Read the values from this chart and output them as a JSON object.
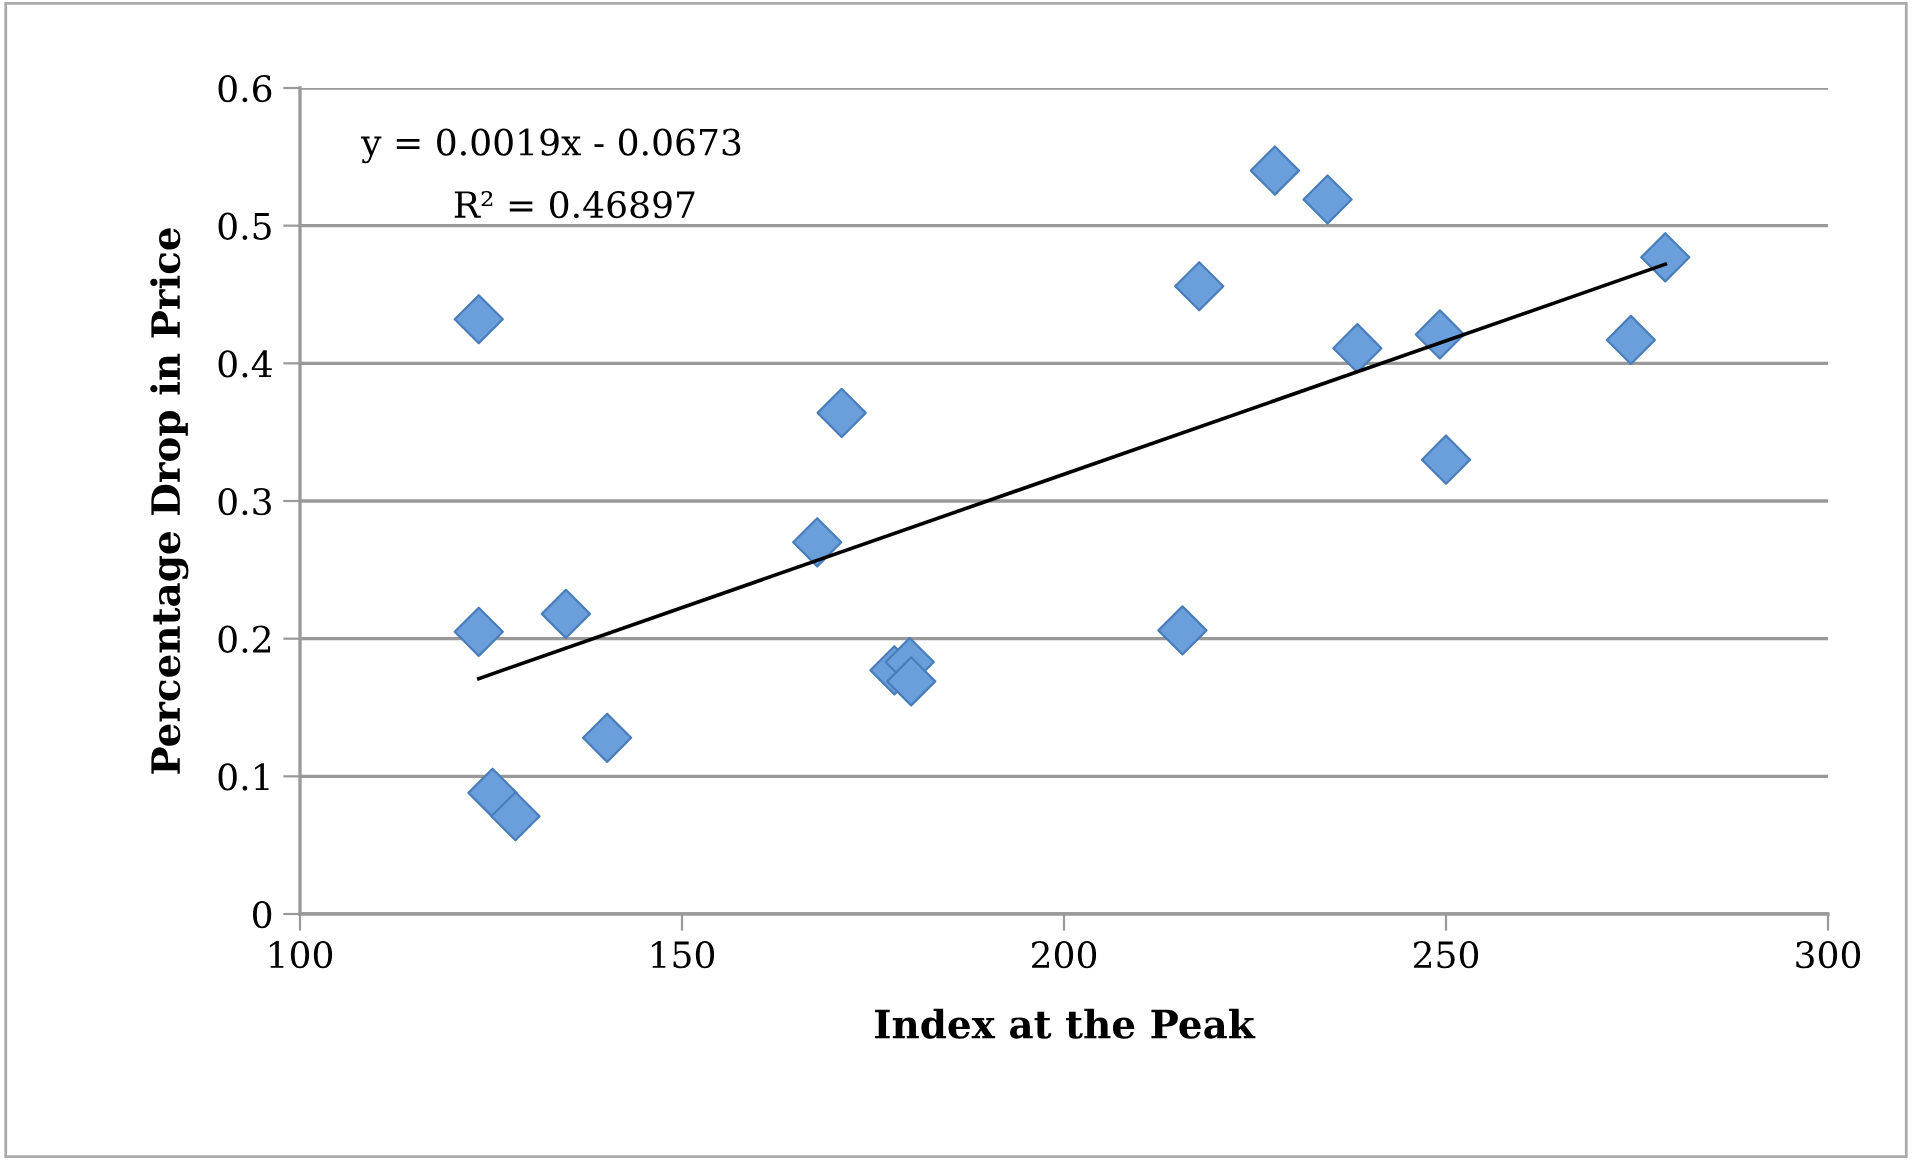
{
  "chart_data": {
    "type": "scatter",
    "xlabel": "Index at the Peak",
    "ylabel": "Percentage Drop in Price",
    "xlim": [
      100,
      300
    ],
    "xticks": [
      100,
      150,
      200,
      250,
      300
    ],
    "ylim": [
      0,
      0.6
    ],
    "yticks": [
      0,
      0.1,
      0.2,
      0.3,
      0.4,
      0.5,
      0.6
    ],
    "grid": "y",
    "marker": "diamond",
    "series": [
      {
        "color": "#6a9fdc",
        "x": [
          123.4,
          170.9,
          167.7,
          123.4,
          134.8,
          140.2,
          125.2,
          128.2,
          177.8,
          179.8,
          180.0,
          227.6,
          234.5,
          217.7,
          278.7,
          238.4,
          249.2,
          274.2,
          250.0,
          215.5
        ],
        "values": [
          0.432,
          0.364,
          0.27,
          0.205,
          0.218,
          0.128,
          0.088,
          0.071,
          0.177,
          0.183,
          0.169,
          0.54,
          0.519,
          0.456,
          0.477,
          0.411,
          0.421,
          0.417,
          0.33,
          0.206
        ]
      },
      {
        "type": "line",
        "marker": "none",
        "color": "#000000",
        "x": [
          123.4,
          278.7
        ],
        "values": [
          0.171,
          0.472
        ]
      }
    ],
    "annotations": [
      "y = 0.0019x - 0.0673",
      "R² = 0.46897"
    ]
  }
}
